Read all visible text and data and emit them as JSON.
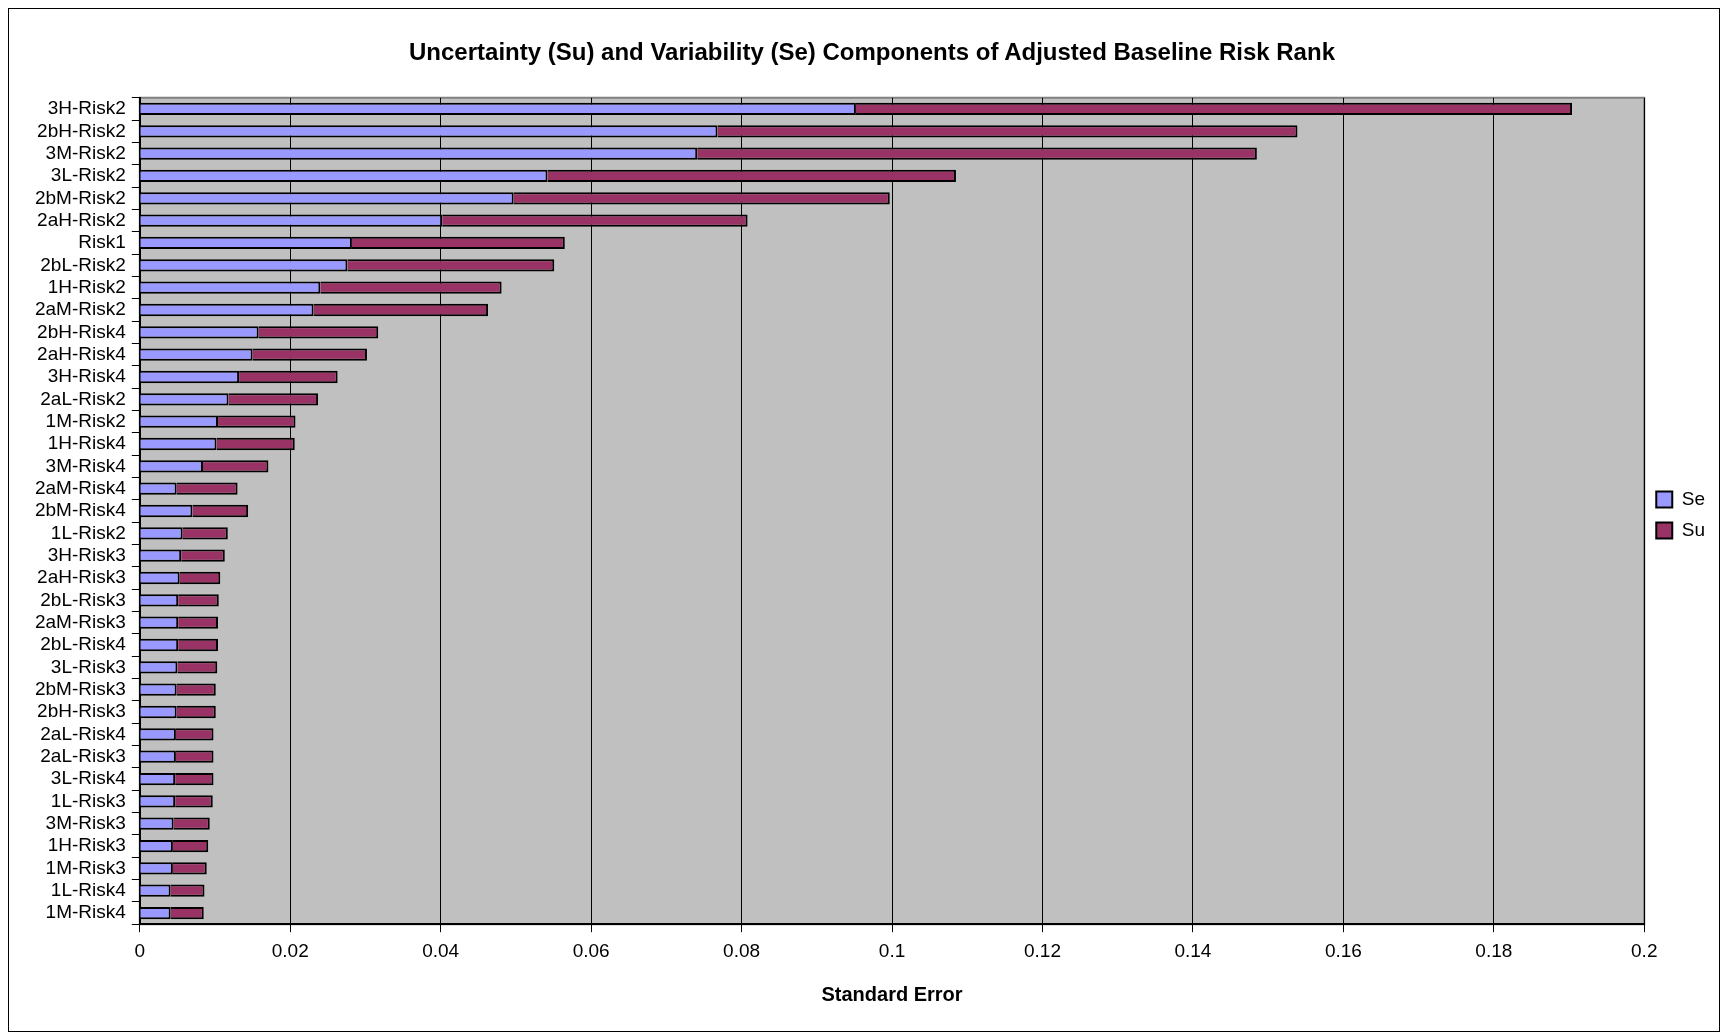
{
  "chart_data": {
    "type": "bar",
    "orientation": "horizontal",
    "stacked": true,
    "title": "Uncertainty (Su) and Variability (Se) Components of Adjusted Baseline Risk Rank",
    "xlabel": "Standard Error",
    "categories": [
      "3H-Risk2",
      "2bH-Risk2",
      "3M-Risk2",
      "3L-Risk2",
      "2bM-Risk2",
      "2aH-Risk2",
      "Risk1",
      "2bL-Risk2",
      "1H-Risk2",
      "2aM-Risk2",
      "2bH-Risk4",
      "2aH-Risk4",
      "3H-Risk4",
      "2aL-Risk2",
      "1M-Risk2",
      "1H-Risk4",
      "3M-Risk4",
      "2aM-Risk4",
      "2bM-Risk4",
      "1L-Risk2",
      "3H-Risk3",
      "2aH-Risk3",
      "2bL-Risk3",
      "2aM-Risk3",
      "2bL-Risk4",
      "3L-Risk3",
      "2bM-Risk3",
      "2bH-Risk3",
      "2aL-Risk4",
      "2aL-Risk3",
      "3L-Risk4",
      "1L-Risk3",
      "3M-Risk3",
      "1H-Risk3",
      "1M-Risk3",
      "1L-Risk4",
      "1M-Risk4"
    ],
    "series": [
      {
        "name": "Se",
        "color": "#9999ff",
        "values": [
          0.0952,
          0.0768,
          0.0741,
          0.0542,
          0.0497,
          0.0402,
          0.0282,
          0.0276,
          0.024,
          0.0231,
          0.0158,
          0.015,
          0.0132,
          0.0118,
          0.0104,
          0.0102,
          0.0084,
          0.0049,
          0.007,
          0.0057,
          0.0055,
          0.0053,
          0.0051,
          0.0051,
          0.0051,
          0.005,
          0.0049,
          0.0049,
          0.0048,
          0.0048,
          0.0047,
          0.0047,
          0.0045,
          0.0044,
          0.0044,
          0.0041,
          0.0041
        ]
      },
      {
        "name": "Su",
        "color": "#993366",
        "values": [
          0.0952,
          0.0771,
          0.0744,
          0.0543,
          0.05,
          0.0406,
          0.0283,
          0.0275,
          0.0241,
          0.0232,
          0.0159,
          0.0152,
          0.0131,
          0.0119,
          0.0103,
          0.0104,
          0.0087,
          0.0081,
          0.0074,
          0.006,
          0.0058,
          0.0054,
          0.0054,
          0.0053,
          0.0053,
          0.0053,
          0.0052,
          0.0052,
          0.005,
          0.005,
          0.0051,
          0.005,
          0.0048,
          0.0047,
          0.0045,
          0.0045,
          0.0044
        ]
      }
    ],
    "xlim": [
      0,
      0.2
    ],
    "xticks": [
      0,
      0.02,
      0.04,
      0.06,
      0.08,
      0.1,
      0.12,
      0.14,
      0.16,
      0.18,
      0.2
    ],
    "grid": "x",
    "legend": "right"
  }
}
